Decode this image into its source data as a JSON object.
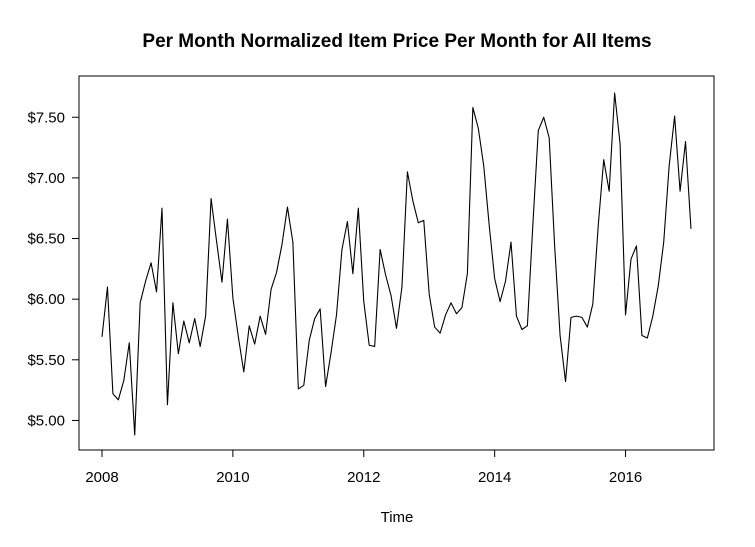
{
  "chart_data": {
    "type": "line",
    "title": "Per Month Normalized Item Price Per Month for All Items",
    "xlabel": "Time",
    "ylabel": "",
    "xlim": [
      2008,
      2017
    ],
    "ylim": [
      4.88,
      7.7
    ],
    "x_ticks": [
      {
        "value": 2008,
        "label": "2008"
      },
      {
        "value": 2010,
        "label": "2010"
      },
      {
        "value": 2012,
        "label": "2012"
      },
      {
        "value": 2014,
        "label": "2014"
      },
      {
        "value": 2016,
        "label": "2016"
      }
    ],
    "y_ticks": [
      {
        "value": 5.0,
        "label": "$5.00"
      },
      {
        "value": 5.5,
        "label": "$5.50"
      },
      {
        "value": 6.0,
        "label": "$6.00"
      },
      {
        "value": 6.5,
        "label": "$6.50"
      },
      {
        "value": 7.0,
        "label": "$7.00"
      },
      {
        "value": 7.5,
        "label": "$7.50"
      }
    ],
    "grid": false,
    "series": [
      {
        "color": "#000000",
        "x_start": 2008,
        "x_step": 0.08333,
        "values": [
          5.69,
          6.1,
          5.22,
          5.17,
          5.33,
          5.64,
          4.88,
          5.97,
          6.15,
          6.3,
          6.06,
          6.75,
          5.13,
          5.97,
          5.55,
          5.82,
          5.64,
          5.84,
          5.61,
          5.86,
          6.83,
          6.48,
          6.14,
          6.66,
          6.01,
          5.69,
          5.4,
          5.78,
          5.63,
          5.86,
          5.71,
          6.08,
          6.22,
          6.45,
          6.76,
          6.47,
          5.26,
          5.29,
          5.66,
          5.84,
          5.92,
          5.28,
          5.56,
          5.87,
          6.41,
          6.64,
          6.21,
          6.75,
          5.98,
          5.62,
          5.61,
          6.41,
          6.2,
          6.03,
          5.76,
          6.1,
          7.05,
          6.81,
          6.63,
          6.65,
          6.04,
          5.77,
          5.72,
          5.87,
          5.97,
          5.88,
          5.93,
          6.21,
          7.58,
          7.41,
          7.1,
          6.61,
          6.17,
          5.98,
          6.15,
          6.47,
          5.86,
          5.75,
          5.78,
          6.61,
          7.39,
          7.5,
          7.33,
          6.44,
          5.7,
          5.32,
          5.85,
          5.86,
          5.85,
          5.77,
          5.96,
          6.61,
          7.15,
          6.89,
          7.7,
          7.28,
          5.87,
          6.33,
          6.44,
          5.7,
          5.68,
          5.86,
          6.11,
          6.47,
          7.1,
          7.51,
          6.89,
          7.3,
          6.58
        ]
      }
    ]
  }
}
